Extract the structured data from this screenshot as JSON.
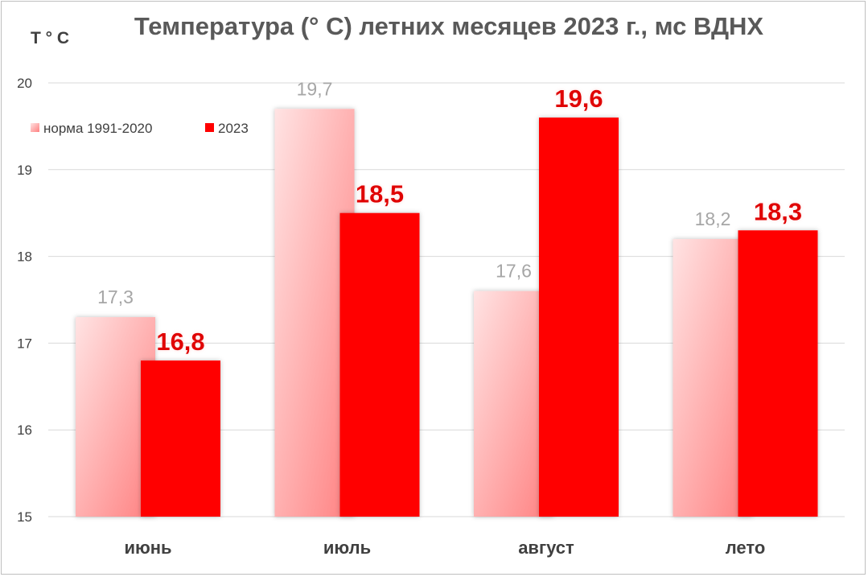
{
  "chart_data": {
    "type": "bar",
    "title": "Температура (° С) летних месяцев 2023 г., мс ВДНХ",
    "ylabel": "Т ° С",
    "xlabel": "",
    "categories": [
      "июнь",
      "июль",
      "август",
      "лето"
    ],
    "series": [
      {
        "name": "норма 1991-2020",
        "values": [
          17.3,
          19.7,
          17.6,
          18.2
        ],
        "labels": [
          "17,3",
          "19,7",
          "17,6",
          "18,2"
        ],
        "color": "#ff8080"
      },
      {
        "name": "2023",
        "values": [
          16.8,
          18.5,
          19.6,
          18.3
        ],
        "labels": [
          "16,8",
          "18,5",
          "19,6",
          "18,3"
        ],
        "color": "#ff0000"
      }
    ],
    "ylim": [
      15,
      20
    ],
    "yticks": [
      "15",
      "16",
      "17",
      "18",
      "19",
      "20"
    ],
    "grid": true,
    "legend_position": "top-left"
  }
}
